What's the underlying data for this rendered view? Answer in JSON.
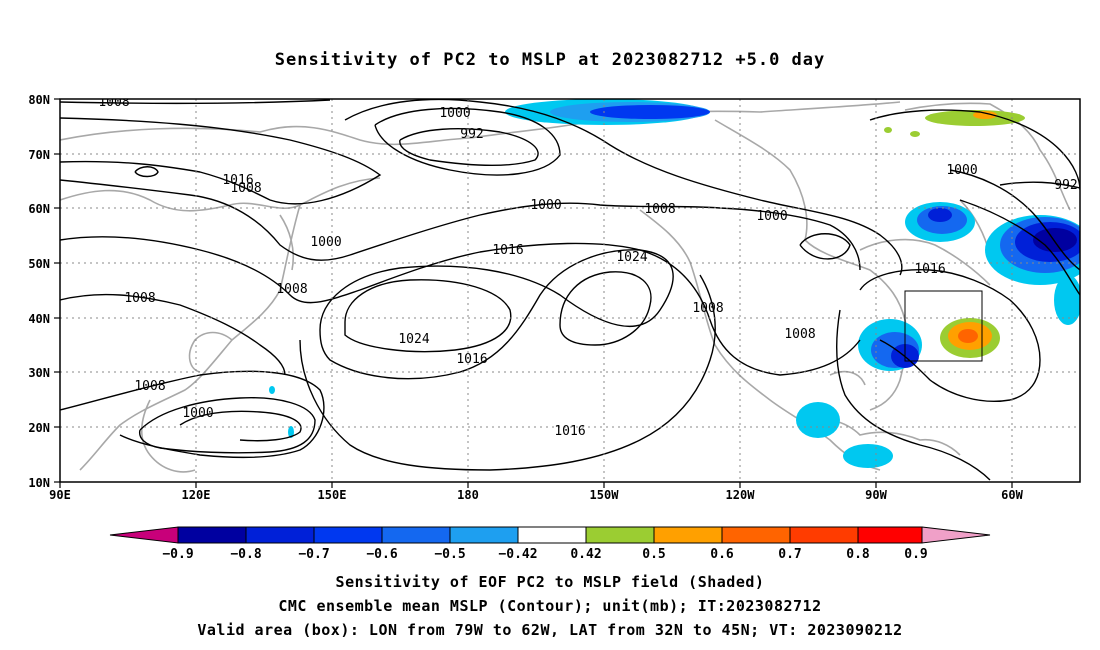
{
  "title": "Sensitivity of PC2 to MSLP at 2023082712 +5.0 day",
  "map": {
    "lon_labels": [
      "90E",
      "120E",
      "150E",
      "180",
      "150W",
      "120W",
      "90W",
      "60W"
    ],
    "lat_labels": [
      "80N",
      "70N",
      "60N",
      "50N",
      "40N",
      "30N",
      "20N",
      "10N"
    ],
    "contour_labels": [
      "1008",
      "1000",
      "992",
      "1016",
      "1008",
      "1000",
      "1000",
      "1008",
      "1000",
      "1016",
      "1024",
      "1008",
      "1008",
      "1024",
      "1016",
      "1016",
      "1008",
      "1000",
      "1016",
      "1008",
      "1008",
      "1000",
      "992"
    ],
    "valid_box": {
      "lon_from": "79W",
      "lon_to": "62W",
      "lat_from": "32N",
      "lat_to": "45N"
    }
  },
  "colorbar": {
    "labels": [
      "−0.9",
      "−0.8",
      "−0.7",
      "−0.6",
      "−0.5",
      "−0.42",
      "0.42",
      "0.5",
      "0.6",
      "0.7",
      "0.8",
      "0.9"
    ],
    "colors": [
      "#c8007a",
      "#0000a0",
      "#0020d8",
      "#0038f0",
      "#1468f0",
      "#1e9ff0",
      "#00c8f0",
      "#ffffff",
      "#9bcd32",
      "#ffa000",
      "#ff6400",
      "#ff3c00",
      "#ff0000",
      "#f0a0c8"
    ]
  },
  "footer": {
    "line1": "Sensitivity of EOF PC2 to MSLP field (Shaded)",
    "line2": "CMC ensemble mean MSLP (Contour); unit(mb); IT:2023082712",
    "line3": "Valid area (box): LON from 79W to 62W, LAT from 32N to 45N; VT: 2023090212"
  }
}
